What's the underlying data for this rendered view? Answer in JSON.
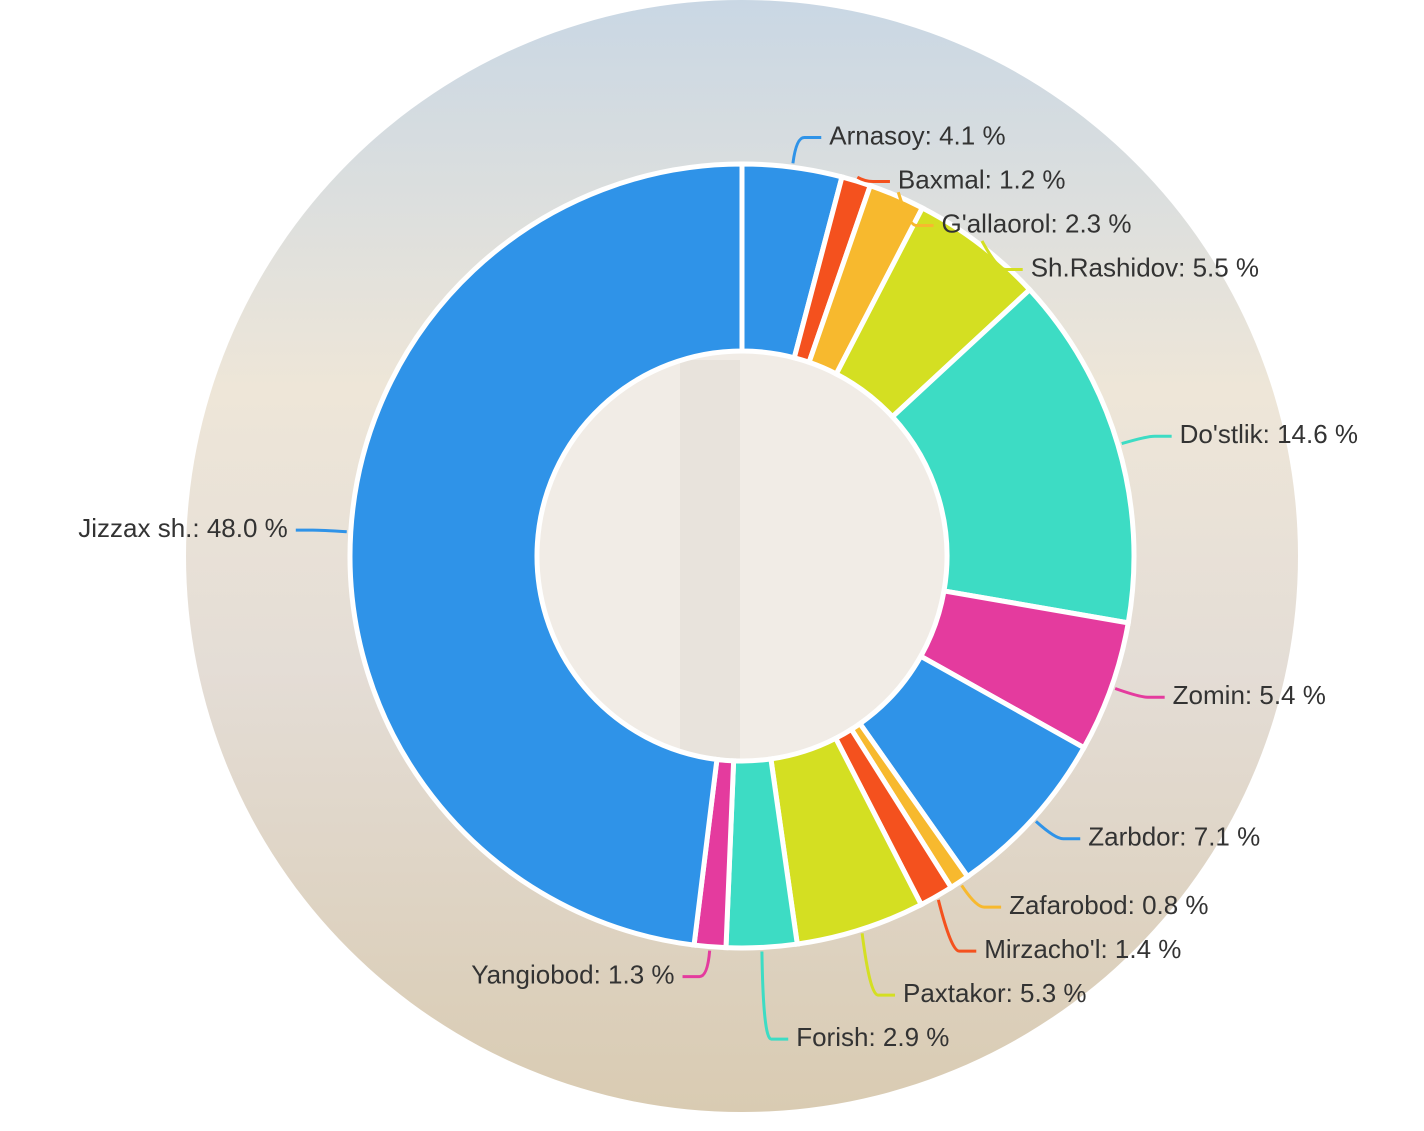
{
  "chart_data": {
    "type": "donut",
    "values": [
      4.1,
      1.2,
      2.3,
      5.5,
      14.6,
      5.4,
      7.1,
      0.8,
      1.4,
      5.3,
      2.9,
      1.3,
      48.0
    ],
    "value_labels": [
      "Arnasoy: 4.1 %",
      "Baxmal: 1.2 %",
      "G'allaorol: 2.3 %",
      "Sh.Rashidov: 5.5 %",
      "Do'stlik: 14.6 %",
      "Zomin: 5.4 %",
      "Zarbdor: 7.1 %",
      "Zafarobod: 0.8 %",
      "Mirzacho'l: 1.4 %",
      "Paxtakor: 5.3 %",
      "Forish: 2.9 %",
      "Yangiobod: 1.3 %",
      "Jizzax sh.: 48.0 %"
    ],
    "colors": [
      "#2f93e8",
      "#f4511e",
      "#f7b92e",
      "#d4df22",
      "#3ddcc4",
      "#e43b9e",
      "#2f93e8",
      "#f7b92e",
      "#f4511e",
      "#d4df22",
      "#3ddcc4",
      "#e43b9e",
      "#2f93e8"
    ]
  }
}
